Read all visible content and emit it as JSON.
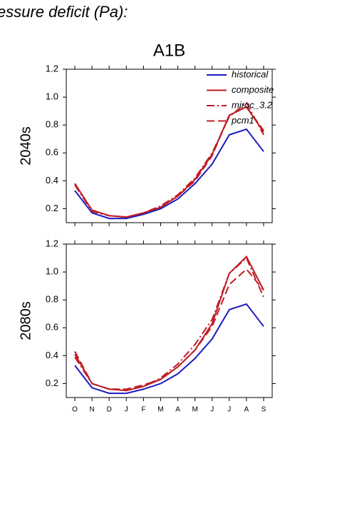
{
  "title": "essure deficit (Pa):",
  "chart_data": [
    {
      "type": "line",
      "title": "A1B",
      "ylabel": "2040s",
      "categories": [
        null,
        null,
        null,
        null,
        null,
        null,
        null,
        null,
        null,
        null,
        null,
        null
      ],
      "ylim": [
        0.1,
        1.2
      ],
      "yticks": [
        0.2,
        0.4,
        0.6,
        0.8,
        {
          "value": 1,
          "label": "1.0"
        },
        1.2
      ],
      "legend": "upper right",
      "series": [
        {
          "name": "historical",
          "color": "#1c1cc0",
          "linestyle": "solid",
          "values": [
            0.33,
            0.17,
            0.13,
            0.13,
            0.16,
            0.2,
            0.27,
            0.38,
            0.52,
            0.73,
            0.77,
            0.61
          ]
        },
        {
          "name": "composite",
          "color": "#c01c24",
          "linestyle": "solid",
          "values": [
            0.38,
            0.19,
            0.15,
            0.14,
            0.17,
            0.21,
            0.29,
            0.41,
            0.59,
            0.87,
            0.93,
            0.75
          ]
        },
        {
          "name": "miroc_3.2",
          "color": "#c01c24",
          "linestyle": "dashdot",
          "values": [
            0.37,
            0.18,
            0.15,
            0.14,
            0.17,
            0.22,
            0.3,
            0.42,
            0.6,
            0.86,
            0.96,
            0.73
          ]
        },
        {
          "name": "pcm1",
          "color": "#c01c24",
          "linestyle": "dash",
          "values": [
            0.38,
            0.19,
            0.15,
            0.14,
            0.17,
            0.21,
            0.29,
            0.4,
            0.58,
            0.87,
            0.93,
            0.76
          ]
        }
      ]
    },
    {
      "type": "line",
      "ylabel": "2080s",
      "categories": [
        "O",
        "N",
        "D",
        "J",
        "F",
        "M",
        "A",
        "M",
        "J",
        "J",
        "A",
        "S"
      ],
      "ylim": [
        0.1,
        1.2
      ],
      "yticks": [
        0.2,
        0.4,
        0.6,
        0.8,
        {
          "value": 1,
          "label": "1.0"
        },
        1.2
      ],
      "series": [
        {
          "color": "#1c1cc0",
          "linestyle": "solid",
          "values": [
            0.33,
            0.17,
            0.13,
            0.13,
            0.16,
            0.2,
            0.27,
            0.38,
            0.52,
            0.73,
            0.77,
            0.61
          ]
        },
        {
          "color": "#c01c24",
          "linestyle": "solid",
          "values": [
            0.41,
            0.2,
            0.16,
            0.15,
            0.18,
            0.23,
            0.32,
            0.44,
            0.63,
            0.99,
            1.11,
            0.87
          ]
        },
        {
          "color": "#c01c24",
          "linestyle": "dashdot",
          "values": [
            0.39,
            0.2,
            0.16,
            0.15,
            0.18,
            0.24,
            0.34,
            0.48,
            0.66,
            0.99,
            1.1,
            0.82
          ]
        },
        {
          "color": "#c01c24",
          "linestyle": "dash",
          "values": [
            0.43,
            0.2,
            0.16,
            0.16,
            0.19,
            0.23,
            0.32,
            0.44,
            0.61,
            0.91,
            1.02,
            0.87
          ]
        }
      ]
    }
  ]
}
